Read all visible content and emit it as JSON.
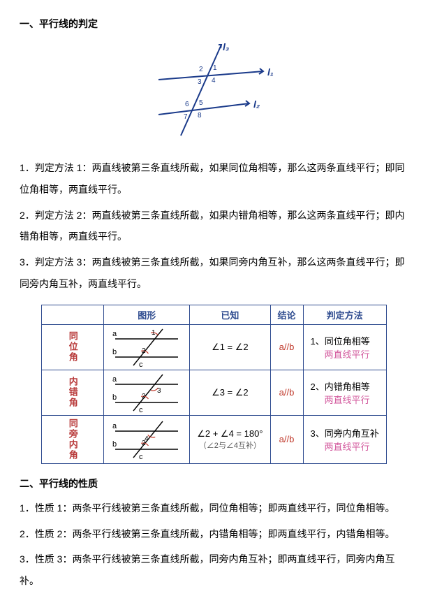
{
  "section1": {
    "heading": "一、平行线的判定",
    "figure": {
      "labels": {
        "l1": "l₁",
        "l2": "l₂",
        "l3": "l₃"
      },
      "angles": [
        "1",
        "2",
        "3",
        "4",
        "5",
        "6",
        "7",
        "8"
      ],
      "stroke": "#1a3a8a",
      "stroke_width": 2
    },
    "paragraphs": [
      "1．判定方法 1：两直线被第三条直线所截，如果同位角相等，那么这两条直线平行；即同位角相等，两直线平行。",
      "2．判定方法 2：两直线被第三条直线所截，如果内错角相等，那么这两条直线平行；即内错角相等，两直线平行。",
      "3．判定方法 3：两直线被第三条直线所截，如果同旁内角互补，那么这两条直线平行；即同旁内角互补，两直线平行。"
    ]
  },
  "table": {
    "border_color": "#2e4b8f",
    "header_color": "#2e4b8f",
    "rowlabel_color": "#b83a3a",
    "conclusion_color": "#c0392b",
    "method_line2_color": "#d35a9e",
    "headers": [
      "图形",
      "已知",
      "结论",
      "判定方法"
    ],
    "rows": [
      {
        "label": "同位角",
        "diagram": {
          "kind": "corresponding",
          "angle_a": "1",
          "angle_b": "2"
        },
        "given": "∠1 = ∠2",
        "given_sub": "",
        "conclusion": "a//b",
        "method_num": "1、",
        "method_l1": "同位角相等",
        "method_l2": "两直线平行"
      },
      {
        "label": "内错角",
        "diagram": {
          "kind": "alternate",
          "angle_a": "3",
          "angle_b": "2"
        },
        "given": "∠3 = ∠2",
        "given_sub": "",
        "conclusion": "a//b",
        "method_num": "2、",
        "method_l1": "内错角相等",
        "method_l2": "两直线平行"
      },
      {
        "label": "同旁内角",
        "diagram": {
          "kind": "cointerior",
          "angle_a": "4",
          "angle_b": "2"
        },
        "given": "∠2 + ∠4 = 180°",
        "given_sub": "（∠2与∠4互补）",
        "conclusion": "a//b",
        "method_num": "3、",
        "method_l1": "同旁内角互补",
        "method_l2": "两直线平行"
      }
    ]
  },
  "section2": {
    "heading": "二、平行线的性质",
    "paragraphs": [
      "1．性质 1：两条平行线被第三条直线所截，同位角相等；即两直线平行，同位角相等。",
      "2．性质 2：两条平行线被第三条直线所截，内错角相等；即两直线平行，内错角相等。",
      "3．性质 3：两条平行线被第三条直线所截，同旁内角互补；即两直线平行，同旁内角互补。"
    ]
  }
}
